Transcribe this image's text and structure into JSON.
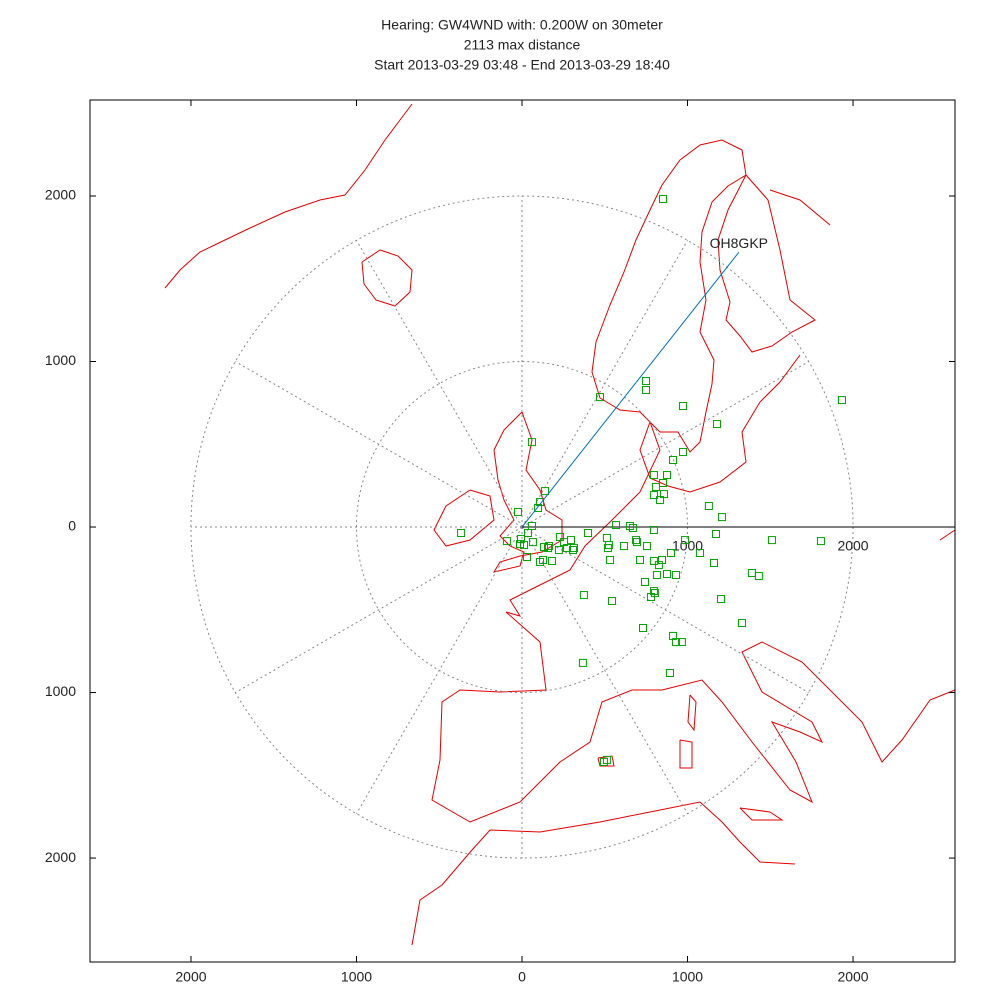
{
  "chart_data": {
    "type": "scatter",
    "title": [
      "Hearing: GW4WND with: 0.200W on 30meter",
      "2113 max distance",
      "Start 2013-03-29 03:48 - End 2013-03-29 18:40"
    ],
    "x": [
      852,
      471,
      749,
      749,
      973,
      1178,
      60,
      973,
      912,
      139,
      109,
      97,
      -24,
      797,
      809,
      876,
      797,
      858,
      834,
      852,
      -368,
      -91,
      -12,
      12,
      -6,
      66,
      60,
      399,
      513,
      652,
      568,
      670,
      797,
      1129,
      1208,
      1172,
      985,
      695,
      755,
      689,
      519,
      525,
      616,
      532,
      713,
      797,
      846,
      827,
      900,
      1075,
      1160,
      876,
      815,
      743,
      930,
      797,
      779,
      803,
      731,
      374,
      544,
      912,
      930,
      966,
      894,
      368,
      1329,
      1202,
      1389,
      1431,
      1510,
      1806,
      1933,
      157,
      223,
      272,
      308,
      181,
      127,
      109,
      230,
      296,
      314,
      254,
      30,
      133,
      163,
      36,
      495,
      513
    ],
    "y": [
      1982,
      785,
      882,
      828,
      731,
      622,
      513,
      453,
      405,
      217,
      151,
      115,
      91,
      314,
      242,
      314,
      193,
      199,
      163,
      266,
      -36,
      -85,
      -103,
      -109,
      -72,
      -91,
      6,
      -36,
      -66,
      6,
      12,
      -6,
      -18,
      127,
      60,
      -42,
      -79,
      -91,
      -115,
      -79,
      -127,
      -109,
      -115,
      -199,
      -199,
      -205,
      -199,
      -230,
      -157,
      -157,
      -217,
      -284,
      -290,
      -332,
      -290,
      -387,
      -423,
      -399,
      -610,
      -411,
      -447,
      -658,
      -695,
      -695,
      -882,
      -821,
      -580,
      -435,
      -278,
      -296,
      -79,
      -85,
      767,
      -127,
      -139,
      -127,
      -139,
      -205,
      -199,
      -211,
      -60,
      -79,
      -127,
      -91,
      -181,
      -121,
      -115,
      -36,
      -1419,
      -1407
    ],
    "color": "#00a000",
    "target": {
      "label": "OH8GKP",
      "x": 1310,
      "y": 1660,
      "color": "#0070c0"
    },
    "rings": [
      1000,
      2000
    ],
    "xlim": [
      -2610,
      2616
    ],
    "ylim": [
      -2628,
      2580
    ],
    "xticks": [
      {
        "value": -2000,
        "label": "2000"
      },
      {
        "value": -1000,
        "label": "1000"
      },
      0,
      1000,
      2000
    ],
    "yticks": [
      {
        "value": -2000,
        "label": "2000"
      },
      {
        "value": -1000,
        "label": "1000"
      },
      0,
      1000,
      2000
    ],
    "map_color": "#e00000"
  }
}
